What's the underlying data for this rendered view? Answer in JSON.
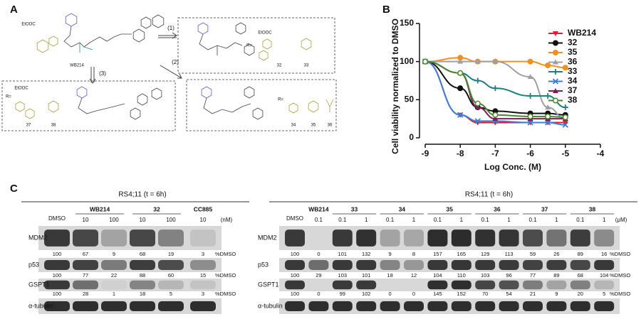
{
  "panels": [
    "A",
    "B",
    "C"
  ],
  "scheme": {
    "parent": "WB214",
    "arrows": [
      "(1)",
      "(2)",
      "(3)"
    ],
    "r_label": "R=",
    "ester": "EtOOC",
    "groups": [
      {
        "compounds": [
          "32",
          "33"
        ]
      },
      {
        "compounds": [
          "34",
          "35",
          "36"
        ]
      },
      {
        "compounds": [
          "37",
          "38"
        ]
      }
    ]
  },
  "chart_data": {
    "type": "line",
    "xlabel": "Log Conc. (M)",
    "ylabel": "Cell viability normalized to DMSO",
    "x": [
      -9,
      -8,
      -7.5,
      -7,
      -6,
      -5.5,
      -5
    ],
    "xlim": [
      -9,
      -4
    ],
    "xticks": [
      -9,
      -8,
      -7,
      -6,
      -5,
      -4
    ],
    "ylim": [
      0,
      150
    ],
    "yticks": [
      0,
      50,
      100,
      150
    ],
    "series": [
      {
        "name": "WB214",
        "color": "#e8192c",
        "marker": "triangle-down",
        "values": [
          100,
          30,
          20,
          20,
          20,
          20,
          20
        ]
      },
      {
        "name": "32",
        "color": "#111111",
        "marker": "circle",
        "values": [
          100,
          65,
          40,
          35,
          32,
          32,
          30
        ]
      },
      {
        "name": "35",
        "color": "#f0901e",
        "marker": "circle",
        "values": [
          100,
          105,
          100,
          100,
          100,
          95,
          92
        ]
      },
      {
        "name": "36",
        "color": "#a0a0a0",
        "marker": "triangle",
        "values": [
          100,
          100,
          100,
          100,
          80,
          40,
          25
        ]
      },
      {
        "name": "33",
        "color": "#1d8080",
        "marker": "plus",
        "values": [
          100,
          85,
          75,
          65,
          55,
          55,
          40
        ]
      },
      {
        "name": "34",
        "color": "#3b7fd6",
        "marker": "cross",
        "values": [
          100,
          30,
          22,
          22,
          20,
          20,
          17
        ]
      },
      {
        "name": "37",
        "color": "#7a1f5c",
        "marker": "triangle",
        "values": [
          100,
          85,
          40,
          25,
          25,
          25,
          25
        ]
      },
      {
        "name": "38",
        "color": "#4a8a2a",
        "marker": "open-circle",
        "values": [
          100,
          85,
          45,
          30,
          28,
          28,
          27
        ]
      }
    ]
  },
  "blots": [
    {
      "title": "RS4;11 (t = 6h)",
      "control": "DMSO",
      "unit": "(nM)",
      "quant_unit": "%DMSO",
      "loading": "α-tubulin",
      "groups": [
        {
          "name": "WB214",
          "lanes": [
            "10",
            "100"
          ]
        },
        {
          "name": "32",
          "lanes": [
            "10",
            "100"
          ]
        },
        {
          "name": "CC885",
          "lanes": [
            "10"
          ]
        }
      ],
      "rows": [
        {
          "name": "MDM2",
          "values": [
            100,
            67,
            9,
            68,
            19,
            3
          ]
        },
        {
          "name": "p53",
          "values": [
            100,
            77,
            22,
            88,
            60,
            15
          ]
        },
        {
          "name": "GSPT1",
          "values": [
            100,
            28,
            1,
            18,
            5,
            3
          ]
        }
      ]
    },
    {
      "title": "RS4;11 (t = 6h)",
      "control": "DMSO",
      "unit": "(μM)",
      "quant_unit": "%DMSO",
      "loading": "α-tubulin",
      "groups": [
        {
          "name": "WB214",
          "lanes": [
            "0.1"
          ]
        },
        {
          "name": "33",
          "lanes": [
            "0.1",
            "1"
          ]
        },
        {
          "name": "34",
          "lanes": [
            "0.1",
            "1"
          ]
        },
        {
          "name": "35",
          "lanes": [
            "0.1",
            "1"
          ]
        },
        {
          "name": "36",
          "lanes": [
            "0.1",
            "1"
          ]
        },
        {
          "name": "37",
          "lanes": [
            "0.1",
            "1"
          ]
        },
        {
          "name": "38",
          "lanes": [
            "0.1",
            "1"
          ]
        }
      ],
      "rows": [
        {
          "name": "MDM2",
          "values": [
            100,
            0,
            101,
            132,
            9,
            8,
            157,
            165,
            129,
            113,
            59,
            26,
            89,
            16
          ]
        },
        {
          "name": "p53",
          "values": [
            100,
            29,
            103,
            101,
            18,
            12,
            104,
            110,
            103,
            96,
            77,
            89,
            68,
            104
          ]
        },
        {
          "name": "GSPT1",
          "values": [
            100,
            0,
            99,
            102,
            0,
            0,
            145,
            152,
            70,
            54,
            21,
            9,
            20,
            5
          ]
        }
      ]
    }
  ]
}
